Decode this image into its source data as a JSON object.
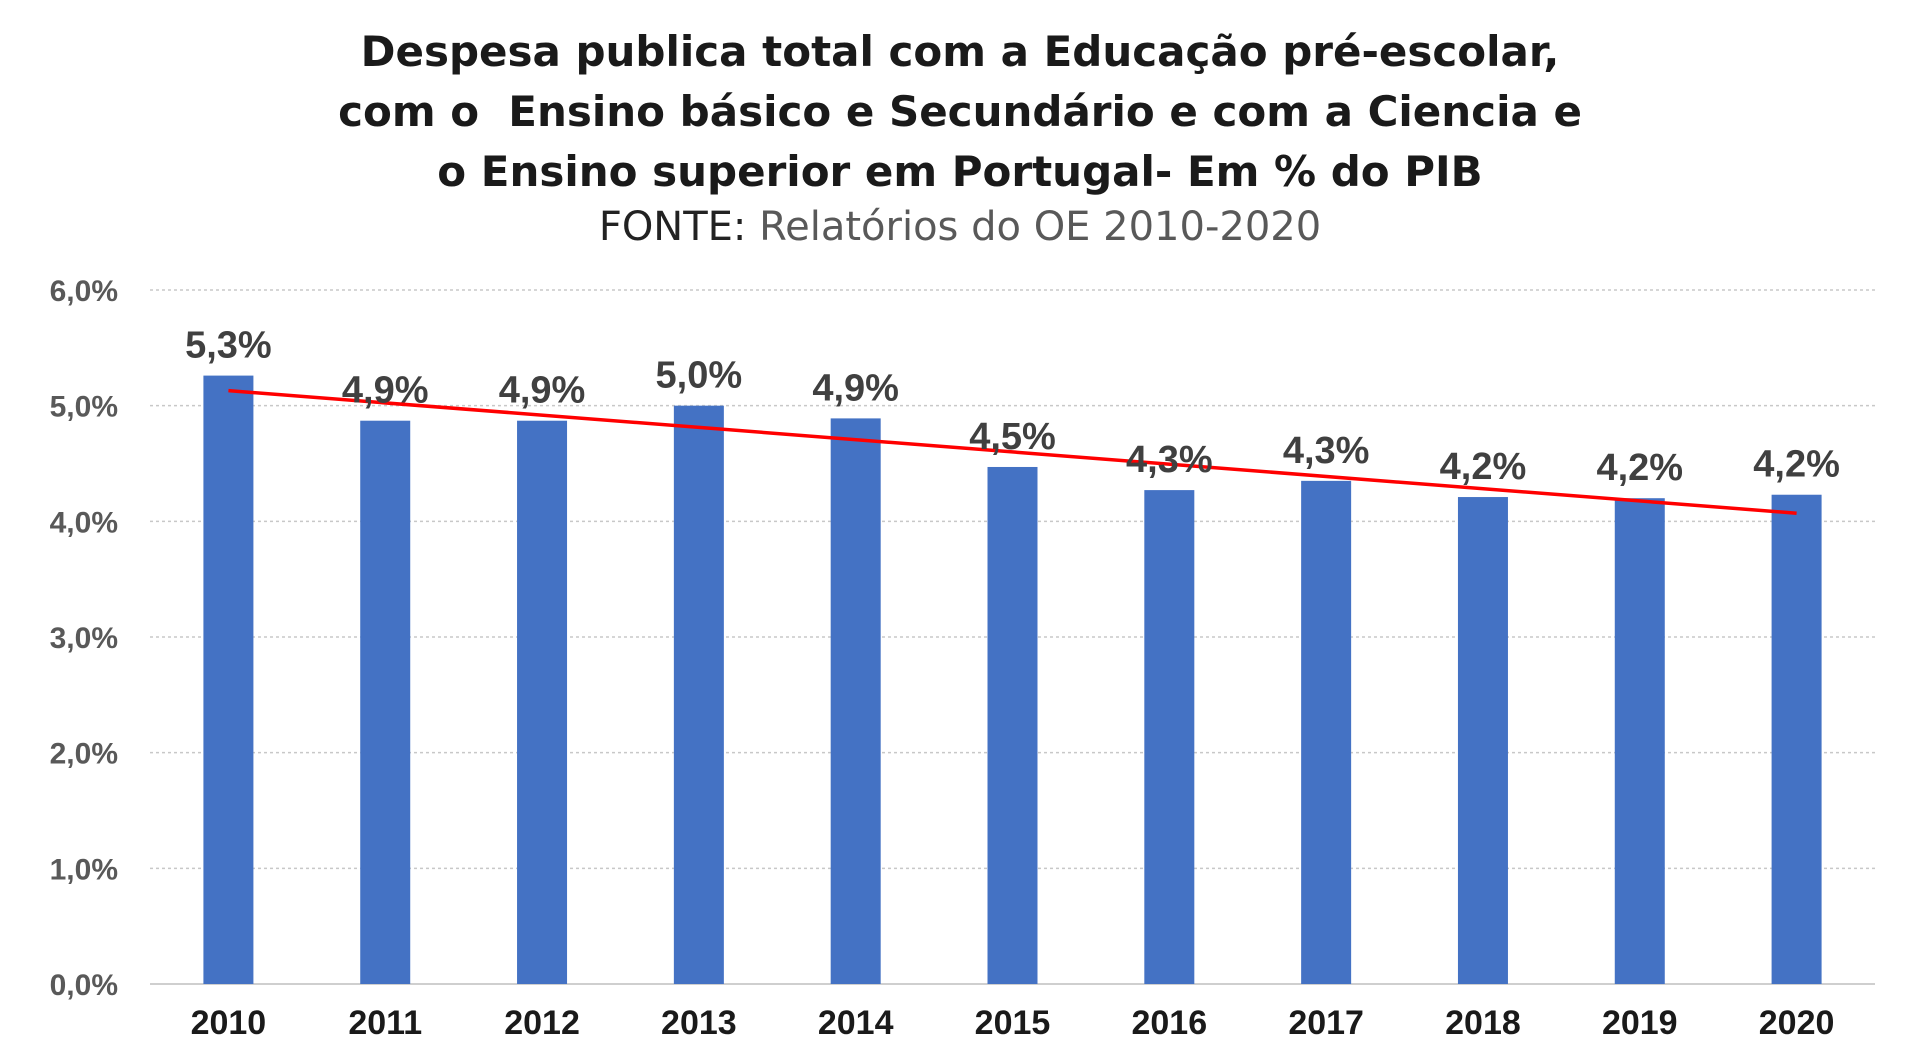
{
  "chart_data": {
    "type": "bar",
    "title_lines": [
      "Despesa publica total com a Educação pré-escolar,",
      "com o  Ensino básico e Secundário e com a Ciencia e",
      "o Ensino superior em Portugal- Em % do PIB"
    ],
    "subtitle_label": "FONTE:",
    "subtitle_text": " Relatórios do OE 2010-2020",
    "categories": [
      "2010",
      "2011",
      "2012",
      "2013",
      "2014",
      "2015",
      "2016",
      "2017",
      "2018",
      "2019",
      "2020"
    ],
    "values": [
      5.26,
      4.87,
      4.87,
      5.0,
      4.89,
      4.47,
      4.27,
      4.35,
      4.21,
      4.2,
      4.23
    ],
    "data_labels": [
      "5,3%",
      "4,9%",
      "4,9%",
      "5,0%",
      "4,9%",
      "4,5%",
      "4,3%",
      "4,3%",
      "4,2%",
      "4,2%",
      "4,2%"
    ],
    "yticks": [
      0,
      1,
      2,
      3,
      4,
      5,
      6
    ],
    "ytick_labels": [
      "0,0%",
      "1,0%",
      "2,0%",
      "3,0%",
      "4,0%",
      "5,0%",
      "6,0%"
    ],
    "ylim": [
      0,
      6
    ],
    "grid": true,
    "bar_color": "#4472C4",
    "trendline": {
      "type": "linear",
      "color": "#FF0000",
      "start_value": 5.13,
      "end_value": 4.07
    }
  }
}
